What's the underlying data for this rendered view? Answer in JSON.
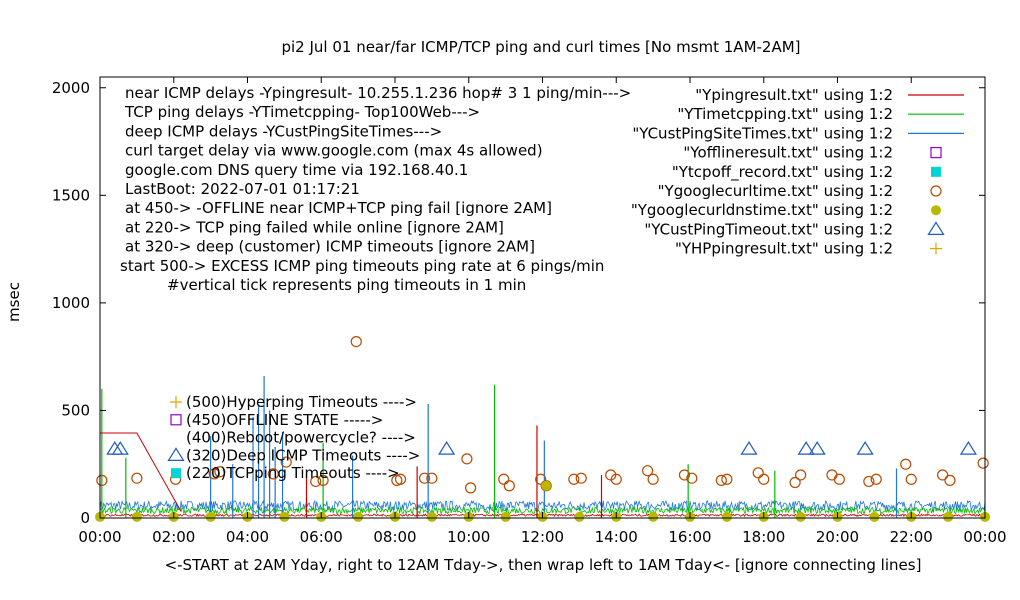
{
  "chart_data": {
    "type": "scatter",
    "title": "pi2  Jul 01  near/far ICMP/TCP ping and curl times [No msmt 1AM-2AM]",
    "xlabel": "<-START at 2AM Yday, right to 12AM Tday->, then wrap left to 1AM Tday<- [ignore connecting lines]",
    "ylabel": "msec",
    "xlim": [
      0,
      24
    ],
    "ylim": [
      0,
      2050
    ],
    "x_ticks": [
      "00:00",
      "02:00",
      "04:00",
      "06:00",
      "08:00",
      "10:00",
      "12:00",
      "14:00",
      "16:00",
      "18:00",
      "20:00",
      "22:00",
      "00:00"
    ],
    "y_ticks": [
      "0",
      "500",
      "1000",
      "1500",
      "2000"
    ],
    "annotations": [
      "near ICMP delays -Ypingresult- 10.255.1.236 hop# 3 1 ping/min--->",
      "TCP ping delays -YTimetcpping- Top100Web--->",
      "deep ICMP delays -YCustPingSiteTimes--->",
      "curl target delay via www.google.com (max 4s allowed)",
      "google.com DNS query time via 192.168.40.1",
      "LastBoot: 2022-07-01 01:17:21",
      "at 450-> -OFFLINE near ICMP+TCP ping fail [ignore 2AM]",
      "at 220-> TCP ping failed while online [ignore 2AM]",
      "at 320-> deep (customer) ICMP timeouts [ignore 2AM]",
      "start 500-> EXCESS ICMP ping timeouts ping rate at 6 pings/min",
      "#vertical tick represents ping timeouts in 1 min"
    ],
    "marker_labels": [
      "(500)Hyperping Timeouts ---->",
      "(450)OFFLINE STATE ----->",
      "(400)Reboot/powercycle? ---->",
      "(320)Deep ICMP Timeouts ---->",
      "(220)TCPping Timeouts ---->"
    ],
    "legend_position": "top-right",
    "series": [
      {
        "name": "\"Ypingresult.txt\" using 1:2",
        "style": "line",
        "color": "#cc0000"
      },
      {
        "name": "\"YTimetcpping.txt\" using 1:2",
        "style": "line",
        "color": "#00bb00"
      },
      {
        "name": "\"YCustPingSiteTimes.txt\" using 1:2",
        "style": "line",
        "color": "#1f77d4"
      },
      {
        "name": "\"Yofflineresult.txt\" using 1:2",
        "style": "open-square",
        "color": "#9400d3"
      },
      {
        "name": "\"Ytcpoff_record.txt\" using 1:2",
        "style": "filled-square",
        "color": "#00d4d4"
      },
      {
        "name": "\"Ygooglecurltime.txt\" using 1:2",
        "style": "open-circle",
        "color": "#b84a00",
        "points": [
          [
            0.05,
            175
          ],
          [
            1,
            185
          ],
          [
            2.05,
            180
          ],
          [
            3.1,
            205
          ],
          [
            3.25,
            215
          ],
          [
            4.7,
            205
          ],
          [
            5.05,
            260
          ],
          [
            5.85,
            170
          ],
          [
            6.05,
            175
          ],
          [
            6.95,
            820
          ],
          [
            8.05,
            175
          ],
          [
            8.15,
            180
          ],
          [
            8.8,
            185
          ],
          [
            9,
            185
          ],
          [
            9.95,
            275
          ],
          [
            10.05,
            140
          ],
          [
            10.95,
            180
          ],
          [
            11.1,
            150
          ],
          [
            11.95,
            180
          ],
          [
            12.1,
            150
          ],
          [
            12.85,
            180
          ],
          [
            13.05,
            185
          ],
          [
            13.85,
            200
          ],
          [
            14,
            180
          ],
          [
            14.85,
            220
          ],
          [
            15,
            180
          ],
          [
            15.85,
            200
          ],
          [
            16.05,
            185
          ],
          [
            16.85,
            175
          ],
          [
            17,
            180
          ],
          [
            17.85,
            210
          ],
          [
            18,
            180
          ],
          [
            18.85,
            165
          ],
          [
            19,
            200
          ],
          [
            19.85,
            200
          ],
          [
            20.05,
            180
          ],
          [
            20.85,
            170
          ],
          [
            21.05,
            180
          ],
          [
            21.85,
            250
          ],
          [
            22,
            180
          ],
          [
            22.85,
            200
          ],
          [
            23.05,
            175
          ],
          [
            23.95,
            255
          ]
        ]
      },
      {
        "name": "\"Ygooglecurldnstime.txt\" using 1:2",
        "style": "filled-circle",
        "color": "#b8b800",
        "points": [
          [
            0,
            5
          ],
          [
            1,
            5
          ],
          [
            2,
            5
          ],
          [
            3,
            5
          ],
          [
            4,
            5
          ],
          [
            5,
            5
          ],
          [
            6,
            5
          ],
          [
            7,
            5
          ],
          [
            8,
            5
          ],
          [
            9,
            5
          ],
          [
            10,
            5
          ],
          [
            11,
            5
          ],
          [
            12,
            5
          ],
          [
            12.1,
            150
          ],
          [
            13,
            5
          ],
          [
            14,
            5
          ],
          [
            15,
            5
          ],
          [
            16,
            5
          ],
          [
            17,
            5
          ],
          [
            18,
            5
          ],
          [
            19,
            5
          ],
          [
            20,
            5
          ],
          [
            21,
            5
          ],
          [
            22,
            5
          ],
          [
            23,
            5
          ],
          [
            24,
            5
          ]
        ]
      },
      {
        "name": "\"YCustPingTimeout.txt\" using 1:2",
        "style": "open-triangle",
        "color": "#1f5ac4",
        "points": [
          [
            0.4,
            320
          ],
          [
            0.55,
            320
          ],
          [
            9.4,
            320
          ],
          [
            17.6,
            320
          ],
          [
            19.15,
            320
          ],
          [
            19.45,
            320
          ],
          [
            20.75,
            320
          ],
          [
            23.55,
            320
          ]
        ]
      },
      {
        "name": "\"YHPpingresult.txt\" using 1:2",
        "style": "plus",
        "color": "#e0a800"
      }
    ],
    "tall_spikes": [
      {
        "x": 0.05,
        "y": 600,
        "series": 1
      },
      {
        "x": 0.7,
        "y": 280,
        "series": 1
      },
      {
        "x": 3.0,
        "y": 380,
        "series": 2
      },
      {
        "x": 3.6,
        "y": 250,
        "series": 2
      },
      {
        "x": 4.15,
        "y": 470,
        "series": 2
      },
      {
        "x": 4.3,
        "y": 520,
        "series": 2
      },
      {
        "x": 4.45,
        "y": 660,
        "series": 2
      },
      {
        "x": 4.6,
        "y": 500,
        "series": 2
      },
      {
        "x": 4.75,
        "y": 330,
        "series": 2
      },
      {
        "x": 4.95,
        "y": 400,
        "series": 2
      },
      {
        "x": 5.6,
        "y": 210,
        "series": 0
      },
      {
        "x": 6.05,
        "y": 350,
        "series": 1
      },
      {
        "x": 6.85,
        "y": 290,
        "series": 2
      },
      {
        "x": 8.6,
        "y": 240,
        "series": 0
      },
      {
        "x": 8.9,
        "y": 530,
        "series": 2
      },
      {
        "x": 10.7,
        "y": 620,
        "series": 1
      },
      {
        "x": 11.85,
        "y": 430,
        "series": 0
      },
      {
        "x": 12.05,
        "y": 360,
        "series": 2
      },
      {
        "x": 13.6,
        "y": 200,
        "series": 0
      },
      {
        "x": 15.95,
        "y": 250,
        "series": 1
      },
      {
        "x": 18.3,
        "y": 220,
        "series": 1
      },
      {
        "x": 21.6,
        "y": 230,
        "series": 2
      }
    ],
    "offline_overlay": [
      [
        0,
        395
      ],
      [
        1,
        395
      ],
      [
        2.2,
        30
      ]
    ]
  }
}
